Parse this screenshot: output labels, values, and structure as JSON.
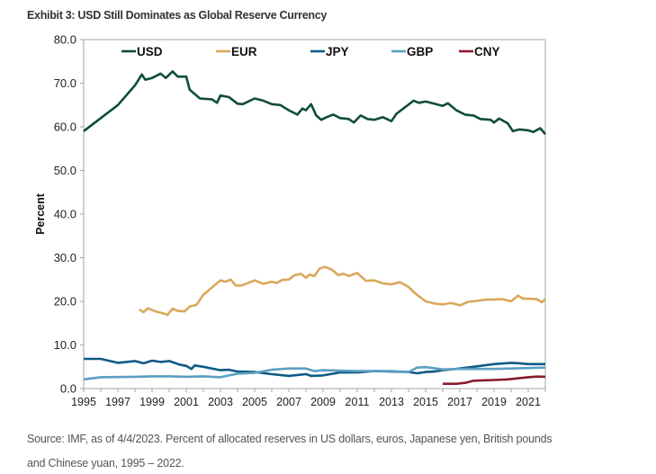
{
  "chart_data": {
    "type": "line",
    "title": "Exhibit 3: USD Still Dominates as Global Reserve Currency",
    "xlabel": "",
    "ylabel": "Percent",
    "xlim": [
      1995,
      2022
    ],
    "ylim": [
      0,
      80
    ],
    "yticks": [
      "0.0",
      "10.0",
      "20.0",
      "30.0",
      "40.0",
      "50.0",
      "60.0",
      "70.0",
      "80.0"
    ],
    "xticks": [
      "1995",
      "1997",
      "1999",
      "2001",
      "2003",
      "2005",
      "2007",
      "2009",
      "2011",
      "2013",
      "2015",
      "2017",
      "2019",
      "2021"
    ],
    "grid": false,
    "legend_placement": "top",
    "series": [
      {
        "name": "USD",
        "color": "#0f4d3a",
        "x": [
          1995,
          1996,
          1997,
          1998,
          1998.4,
          1998.6,
          1999,
          1999.5,
          1999.8,
          2000.2,
          2000.5,
          2001,
          2001.2,
          2001.8,
          2002.5,
          2002.8,
          2003,
          2003.5,
          2004,
          2004.3,
          2005,
          2005.5,
          2006,
          2006.5,
          2007,
          2007.5,
          2007.8,
          2008,
          2008.3,
          2008.6,
          2008.9,
          2009.2,
          2009.6,
          2010,
          2010.5,
          2010.8,
          2011.2,
          2011.6,
          2012,
          2012.5,
          2013,
          2013.3,
          2013.8,
          2014.3,
          2014.6,
          2015,
          2015.5,
          2016,
          2016.3,
          2016.8,
          2017.3,
          2017.8,
          2018.2,
          2018.8,
          2019,
          2019.3,
          2019.8,
          2020.1,
          2020.5,
          2021,
          2021.3,
          2021.7,
          2022
        ],
        "y": [
          59.0,
          62.0,
          65.0,
          69.5,
          72.0,
          70.8,
          71.2,
          72.2,
          71.2,
          72.7,
          71.5,
          71.5,
          68.5,
          66.5,
          66.3,
          65.5,
          67.2,
          66.8,
          65.3,
          65.2,
          66.5,
          66.0,
          65.2,
          65.0,
          63.8,
          62.8,
          64.2,
          63.8,
          65.2,
          62.6,
          61.6,
          62.2,
          62.8,
          62.0,
          61.8,
          61.0,
          62.6,
          61.8,
          61.6,
          62.2,
          61.3,
          63.0,
          64.5,
          66.0,
          65.5,
          65.8,
          65.3,
          64.8,
          65.4,
          63.8,
          62.8,
          62.6,
          61.8,
          61.6,
          61.0,
          61.9,
          60.8,
          59.0,
          59.4,
          59.2,
          58.8,
          59.7,
          58.3
        ]
      },
      {
        "name": "EUR",
        "color": "#d9a85a",
        "x": [
          1998.25,
          1998.5,
          1998.75,
          1999.2,
          1999.6,
          1999.9,
          2000.2,
          2000.5,
          2000.9,
          2001.2,
          2001.6,
          2002,
          2002.6,
          2003,
          2003.3,
          2003.6,
          2003.9,
          2004.2,
          2004.5,
          2005,
          2005.5,
          2006,
          2006.3,
          2006.6,
          2007,
          2007.3,
          2007.7,
          2008,
          2008.2,
          2008.5,
          2008.8,
          2009.1,
          2009.5,
          2009.9,
          2010.2,
          2010.5,
          2011,
          2011.5,
          2012,
          2012.5,
          2013,
          2013.5,
          2014,
          2014.4,
          2015,
          2015.5,
          2016,
          2016.5,
          2017,
          2017.5,
          2018,
          2018.5,
          2019,
          2019.5,
          2020,
          2020.4,
          2020.7,
          2021,
          2021.5,
          2021.8,
          2022
        ],
        "y": [
          18.1,
          17.5,
          18.4,
          17.7,
          17.3,
          16.9,
          18.3,
          17.8,
          17.7,
          18.8,
          19.2,
          21.5,
          23.5,
          24.8,
          24.5,
          25.0,
          23.6,
          23.6,
          24.0,
          24.8,
          24.0,
          24.5,
          24.2,
          24.9,
          25.0,
          25.9,
          26.3,
          25.4,
          26.1,
          25.8,
          27.5,
          27.9,
          27.3,
          26.0,
          26.3,
          25.8,
          26.5,
          24.7,
          24.8,
          24.1,
          23.9,
          24.4,
          23.3,
          21.8,
          20.0,
          19.5,
          19.3,
          19.6,
          19.1,
          19.9,
          20.1,
          20.4,
          20.4,
          20.5,
          20.0,
          21.3,
          20.6,
          20.6,
          20.5,
          19.8,
          20.5
        ]
      },
      {
        "name": "JPY",
        "color": "#0f5a85",
        "x": [
          1995,
          1996,
          1997,
          1998,
          1998.5,
          1999,
          1999.5,
          2000,
          2000.6,
          2001,
          2001.3,
          2001.5,
          2002,
          2003,
          2003.5,
          2004,
          2005,
          2006,
          2007,
          2008,
          2008.3,
          2009,
          2010,
          2011,
          2012,
          2013,
          2014,
          2014.5,
          2015,
          2015.5,
          2016,
          2017,
          2018,
          2019,
          2020,
          2020.5,
          2021,
          2022
        ],
        "y": [
          6.8,
          6.8,
          5.9,
          6.3,
          5.8,
          6.4,
          6.1,
          6.3,
          5.5,
          5.2,
          4.5,
          5.3,
          5.0,
          4.2,
          4.3,
          3.9,
          3.8,
          3.3,
          2.9,
          3.3,
          2.9,
          3.0,
          3.7,
          3.7,
          4.0,
          3.9,
          3.8,
          3.5,
          3.8,
          3.9,
          4.2,
          4.6,
          5.1,
          5.6,
          5.9,
          5.8,
          5.6,
          5.6
        ]
      },
      {
        "name": "GBP",
        "color": "#5b9fc2",
        "x": [
          1995,
          1996,
          1998,
          1999,
          2000,
          2001,
          2002,
          2003,
          2003.5,
          2004,
          2005,
          2006,
          2007,
          2008,
          2008.5,
          2009,
          2011,
          2012,
          2013,
          2014,
          2014.5,
          2015,
          2016,
          2017,
          2018,
          2019,
          2020,
          2021,
          2022
        ],
        "y": [
          2.1,
          2.6,
          2.7,
          2.8,
          2.8,
          2.7,
          2.8,
          2.6,
          3.0,
          3.4,
          3.6,
          4.3,
          4.6,
          4.6,
          4.0,
          4.2,
          4.0,
          4.0,
          4.0,
          3.8,
          4.8,
          4.9,
          4.4,
          4.5,
          4.5,
          4.5,
          4.6,
          4.7,
          4.8
        ]
      },
      {
        "name": "CNY",
        "color": "#8b1a2b",
        "x": [
          2016,
          2016.8,
          2017.3,
          2017.8,
          2018.5,
          2019,
          2019.8,
          2020.3,
          2021,
          2021.5,
          2022
        ],
        "y": [
          1.1,
          1.1,
          1.3,
          1.8,
          1.9,
          1.95,
          2.1,
          2.3,
          2.6,
          2.75,
          2.7
        ]
      }
    ]
  },
  "source_caption": {
    "line1": "Source: IMF, as of 4/4/2023. Percent of allocated reserves in US dollars, euros, Japanese yen, British pounds",
    "line2": "and Chinese yuan, 1995 – 2022."
  }
}
